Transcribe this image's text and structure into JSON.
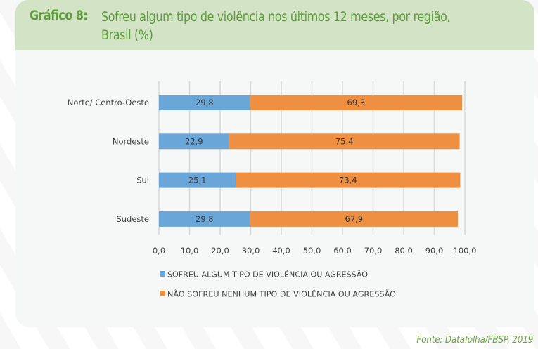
{
  "header": {
    "prefix": "Gráfico 8:",
    "title_line1": "Sofreu algum tipo de violência nos últimos 12 meses, por região,",
    "title_line2": "Brasil (%)"
  },
  "source": "Fonte: Datafolha/FBSP, 2019",
  "colors": {
    "header_bg": "#d3e3c5",
    "title": "#5e9c3c",
    "series_1": "#6aa7d8",
    "series_2": "#ef8f41",
    "grid": "#d9d9d9"
  },
  "chart_data": {
    "type": "bar",
    "orientation": "horizontal",
    "stacked": true,
    "title": "Sofreu algum tipo de violência nos últimos 12 meses, por região, Brasil (%)",
    "xlabel": "",
    "ylabel": "",
    "categories": [
      "Norte/ Centro-Oeste",
      "Nordeste",
      "Sul",
      "Sudeste"
    ],
    "series": [
      {
        "name": "SOFREU ALGUM TIPO DE VIOLÊNCIA OU AGRESSÃO",
        "values": [
          29.8,
          22.9,
          25.1,
          29.8
        ],
        "labels": [
          "29,8",
          "22,9",
          "25,1",
          "29,8"
        ],
        "color": "#6aa7d8"
      },
      {
        "name": "NÃO SOFREU NENHUM TIPO DE VIOLÊNCIA OU AGRESSÃO",
        "values": [
          69.3,
          75.4,
          73.4,
          67.9
        ],
        "labels": [
          "69,3",
          "75,4",
          "73,4",
          "67,9"
        ],
        "color": "#ef8f41"
      }
    ],
    "xlim": [
      0,
      100
    ],
    "xticks": [
      0,
      10,
      20,
      30,
      40,
      50,
      60,
      70,
      80,
      90,
      100
    ],
    "xtick_labels": [
      "0,0",
      "10,0",
      "20,0",
      "30,0",
      "40,0",
      "50,0",
      "60,0",
      "70,0",
      "80,0",
      "90,0",
      "100,0"
    ],
    "grid": true,
    "legend_position": "bottom"
  }
}
